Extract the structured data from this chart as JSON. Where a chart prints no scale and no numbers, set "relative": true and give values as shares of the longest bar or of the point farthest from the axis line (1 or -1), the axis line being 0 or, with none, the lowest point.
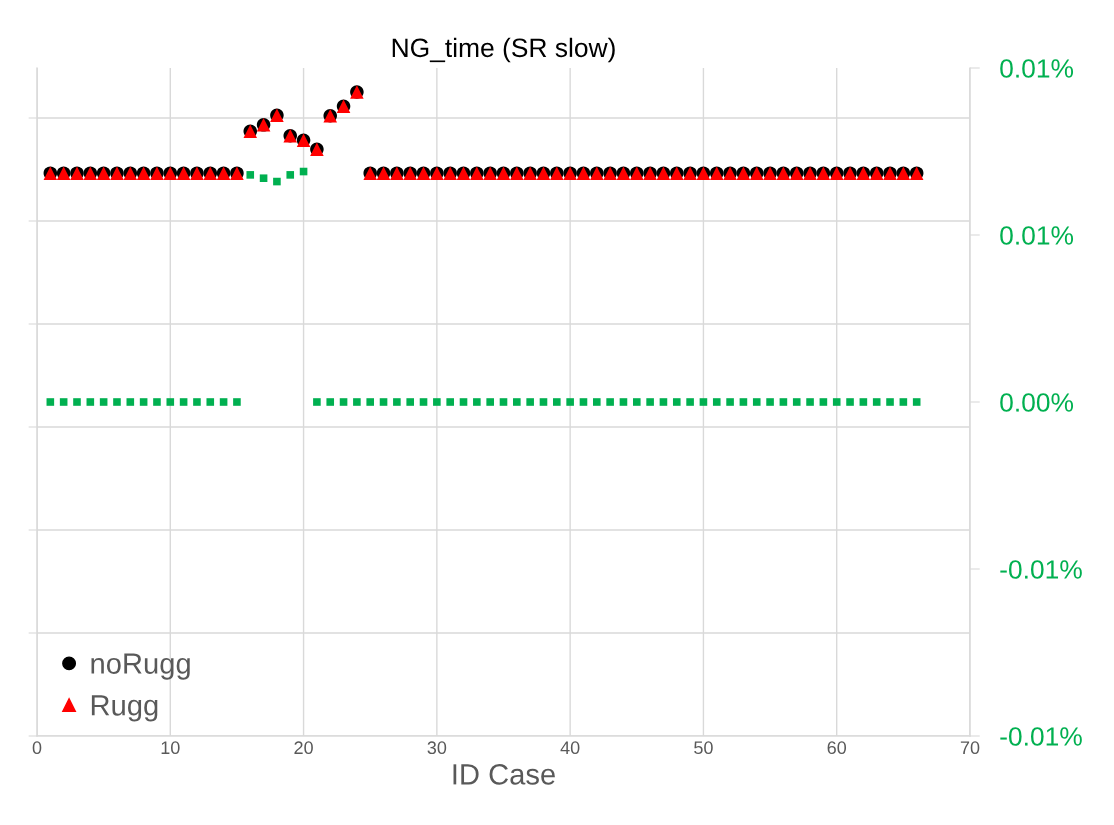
{
  "chart_data": {
    "type": "scatter",
    "title": "NG_time (SR slow)",
    "xlabel": "ID Case",
    "xlim": [
      0,
      70
    ],
    "xticks": [
      0,
      10,
      20,
      30,
      40,
      50,
      60,
      70
    ],
    "relative": true,
    "y2lim": [
      -0.01,
      0.01
    ],
    "y2ticks": [
      {
        "value": -0.01,
        "label": "-0.01%"
      },
      {
        "value": -0.005,
        "label": "-0.01%"
      },
      {
        "value": 0,
        "label": "0.00%"
      },
      {
        "value": 0.005,
        "label": "0.01%"
      },
      {
        "value": 0.01,
        "label": "0.01%"
      }
    ],
    "grid": true,
    "legend": "bottom left",
    "series": [
      {
        "name": "noRugg",
        "color": "#000000",
        "marker": "circle",
        "x": [
          1,
          2,
          3,
          4,
          5,
          6,
          7,
          8,
          9,
          10,
          11,
          12,
          13,
          14,
          15,
          16,
          17,
          18,
          19,
          20,
          21,
          22,
          23,
          24,
          25,
          26,
          27,
          28,
          29,
          30,
          31,
          32,
          33,
          34,
          35,
          36,
          37,
          38,
          39,
          40,
          41,
          42,
          43,
          44,
          45,
          46,
          47,
          48,
          49,
          50,
          51,
          52,
          53,
          54,
          55,
          56,
          57,
          58,
          59,
          60,
          61,
          62,
          63,
          64,
          65,
          66
        ],
        "values": [
          0.874,
          0.874,
          0.874,
          0.874,
          0.874,
          0.874,
          0.874,
          0.874,
          0.874,
          0.874,
          0.874,
          0.874,
          0.874,
          0.874,
          0.874,
          0.939,
          0.949,
          0.964,
          0.932,
          0.925,
          0.911,
          0.963,
          0.978,
          1,
          0.874,
          0.874,
          0.874,
          0.874,
          0.874,
          0.874,
          0.874,
          0.874,
          0.874,
          0.874,
          0.874,
          0.874,
          0.874,
          0.874,
          0.874,
          0.874,
          0.874,
          0.874,
          0.874,
          0.874,
          0.874,
          0.874,
          0.874,
          0.874,
          0.874,
          0.874,
          0.874,
          0.874,
          0.874,
          0.874,
          0.874,
          0.874,
          0.874,
          0.874,
          0.874,
          0.874,
          0.874,
          0.874,
          0.874,
          0.874,
          0.874,
          0.874
        ]
      },
      {
        "name": "Rugg",
        "color": "#ff0000",
        "marker": "triangle",
        "x": [
          1,
          2,
          3,
          4,
          5,
          6,
          7,
          8,
          9,
          10,
          11,
          12,
          13,
          14,
          15,
          16,
          17,
          18,
          19,
          20,
          21,
          22,
          23,
          24,
          25,
          26,
          27,
          28,
          29,
          30,
          31,
          32,
          33,
          34,
          35,
          36,
          37,
          38,
          39,
          40,
          41,
          42,
          43,
          44,
          45,
          46,
          47,
          48,
          49,
          50,
          51,
          52,
          53,
          54,
          55,
          56,
          57,
          58,
          59,
          60,
          61,
          62,
          63,
          64,
          65,
          66
        ],
        "values": [
          0.874,
          0.874,
          0.874,
          0.874,
          0.874,
          0.874,
          0.874,
          0.874,
          0.874,
          0.874,
          0.874,
          0.874,
          0.874,
          0.874,
          0.874,
          0.939,
          0.949,
          0.964,
          0.932,
          0.925,
          0.911,
          0.963,
          0.978,
          1,
          0.874,
          0.874,
          0.874,
          0.874,
          0.874,
          0.874,
          0.874,
          0.874,
          0.874,
          0.874,
          0.874,
          0.874,
          0.874,
          0.874,
          0.874,
          0.874,
          0.874,
          0.874,
          0.874,
          0.874,
          0.874,
          0.874,
          0.874,
          0.874,
          0.874,
          0.874,
          0.874,
          0.874,
          0.874,
          0.874,
          0.874,
          0.874,
          0.874,
          0.874,
          0.874,
          0.874,
          0.874,
          0.874,
          0.874,
          0.874,
          0.874,
          0.874
        ]
      },
      {
        "color": "#00b050",
        "marker": "square",
        "axis": "y2",
        "x": [
          1,
          2,
          3,
          4,
          5,
          6,
          7,
          8,
          9,
          10,
          11,
          12,
          13,
          14,
          15,
          16,
          17,
          18,
          19,
          20,
          21,
          22,
          23,
          24,
          25,
          26,
          27,
          28,
          29,
          30,
          31,
          32,
          33,
          34,
          35,
          36,
          37,
          38,
          39,
          40,
          41,
          42,
          43,
          44,
          45,
          46,
          47,
          48,
          49,
          50,
          51,
          52,
          53,
          54,
          55,
          56,
          57,
          58,
          59,
          60,
          61,
          62,
          63,
          64,
          65,
          66
        ],
        "values": [
          0,
          0,
          0,
          0,
          0,
          0,
          0,
          0,
          0,
          0,
          0,
          0,
          0,
          0,
          0,
          0.0068,
          0.0067,
          0.0066,
          0.0068,
          0.0069,
          0,
          0,
          0,
          0,
          0,
          0,
          0,
          0,
          0,
          0,
          0,
          0,
          0,
          0,
          0,
          0,
          0,
          0,
          0,
          0,
          0,
          0,
          0,
          0,
          0,
          0,
          0,
          0,
          0,
          0,
          0,
          0,
          0,
          0,
          0,
          0,
          0,
          0,
          0,
          0,
          0,
          0,
          0,
          0,
          0,
          0
        ]
      }
    ]
  }
}
